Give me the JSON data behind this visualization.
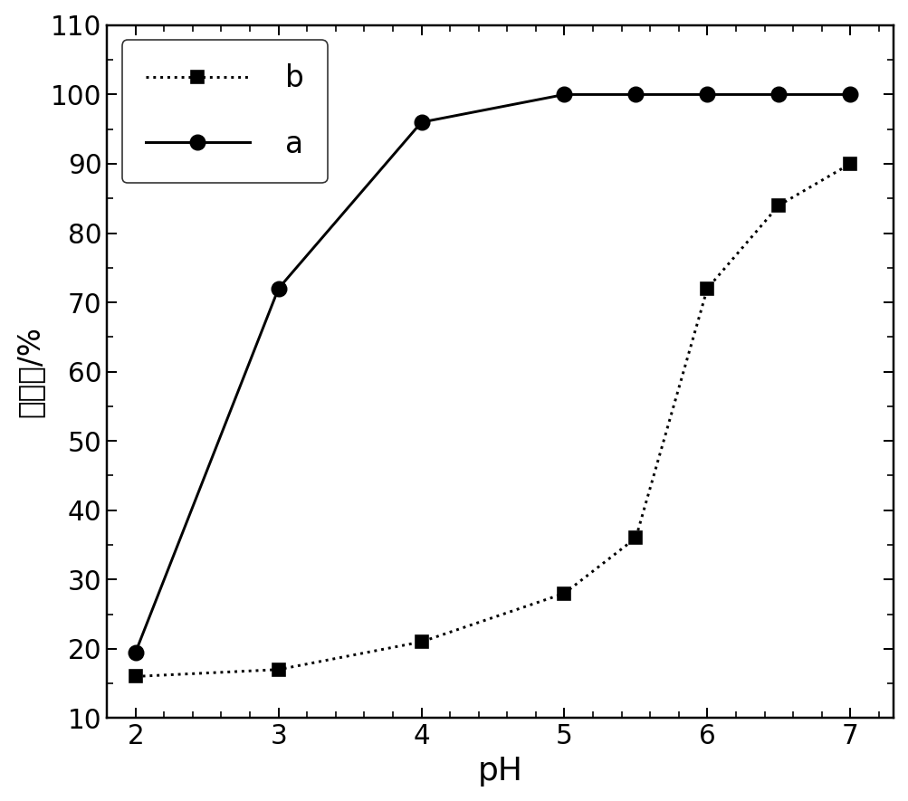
{
  "series_a": {
    "x": [
      2,
      3,
      4,
      5,
      5.5,
      6,
      6.5,
      7
    ],
    "y": [
      19.5,
      72,
      96,
      100,
      100,
      100,
      100,
      100
    ],
    "label": "a",
    "linestyle": "solid",
    "marker": "o",
    "color": "black",
    "markersize": 10
  },
  "series_b": {
    "x": [
      2,
      3,
      4,
      5,
      5.5,
      6,
      6.5,
      7
    ],
    "y": [
      16,
      17,
      21,
      28,
      36,
      72,
      84,
      90
    ],
    "label": "b",
    "linestyle": "dotted",
    "marker": "s",
    "color": "black",
    "markersize": 8
  },
  "xlabel": "pH",
  "ylabel": "吸附率/%",
  "xlim": [
    1.8,
    7.3
  ],
  "ylim": [
    10,
    110
  ],
  "yticks": [
    10,
    20,
    30,
    40,
    50,
    60,
    70,
    80,
    90,
    100,
    110
  ],
  "xticks": [
    2,
    3,
    4,
    5,
    6,
    7
  ],
  "xlabel_fontsize": 22,
  "ylabel_fontsize": 20,
  "tick_fontsize": 18,
  "legend_fontsize": 20,
  "background_color": "#ffffff",
  "figure_width": 8.5,
  "figure_height": 7.5,
  "dpi": 118
}
